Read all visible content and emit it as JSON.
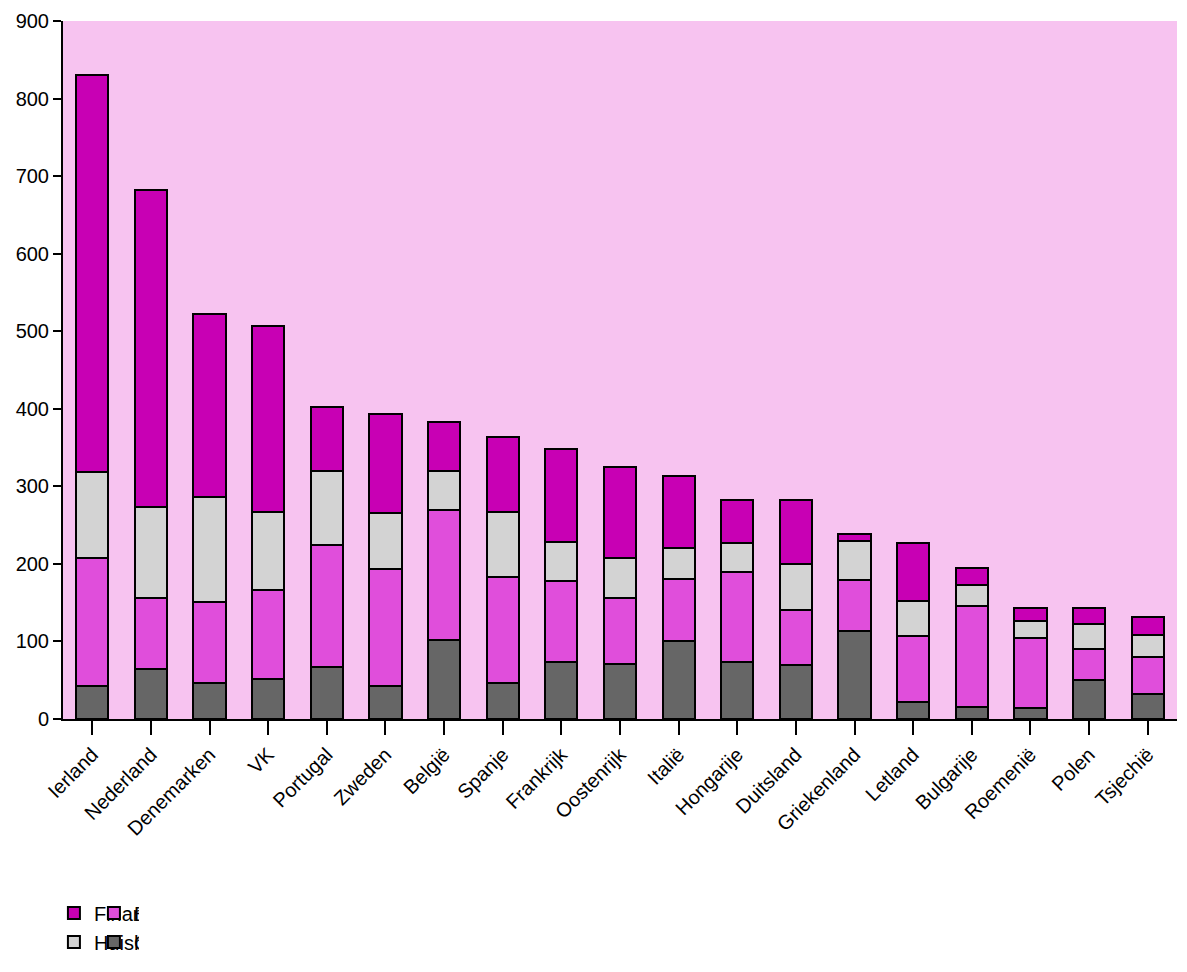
{
  "chart_data": {
    "type": "bar",
    "stacked": true,
    "categories": [
      "Ierland",
      "Nederland",
      "Denemarken",
      "VK",
      "Portugal",
      "Zweden",
      "België",
      "Spanje",
      "Frankrijk",
      "Oostenrijk",
      "Italië",
      "Hongarije",
      "Duitsland",
      "Griekenland",
      "Letland",
      "Bulgarije",
      "Roemenië",
      "Polen",
      "Tsjechië"
    ],
    "series": [
      {
        "name": "Overheid",
        "color": "#666666",
        "values": [
          43,
          65,
          46,
          52,
          67,
          43,
          102,
          47,
          74,
          71,
          100,
          74,
          70,
          113,
          22,
          15,
          14,
          50,
          32
        ]
      },
      {
        "name": "Bedrijfsleven",
        "color": "#e04edb",
        "values": [
          165,
          91,
          105,
          114,
          158,
          150,
          167,
          136,
          104,
          85,
          80,
          116,
          70,
          66,
          85,
          131,
          91,
          40,
          48
        ]
      },
      {
        "name": "Huishoudens",
        "color": "#d3d3d3",
        "values": [
          111,
          118,
          135,
          101,
          95,
          72,
          51,
          84,
          50,
          52,
          41,
          37,
          60,
          51,
          45,
          27,
          22,
          33,
          28
        ]
      },
      {
        "name": "Financiële sector",
        "color": "#c800b4",
        "values": [
          511,
          408,
          236,
          240,
          82,
          128,
          63,
          97,
          120,
          117,
          92,
          55,
          82,
          9,
          75,
          22,
          16,
          20,
          24
        ]
      }
    ],
    "ylim": [
      0,
      900
    ],
    "yticks": [
      0,
      100,
      200,
      300,
      400,
      500,
      600,
      700,
      800,
      900
    ],
    "grid": false,
    "legend": "bottom"
  }
}
